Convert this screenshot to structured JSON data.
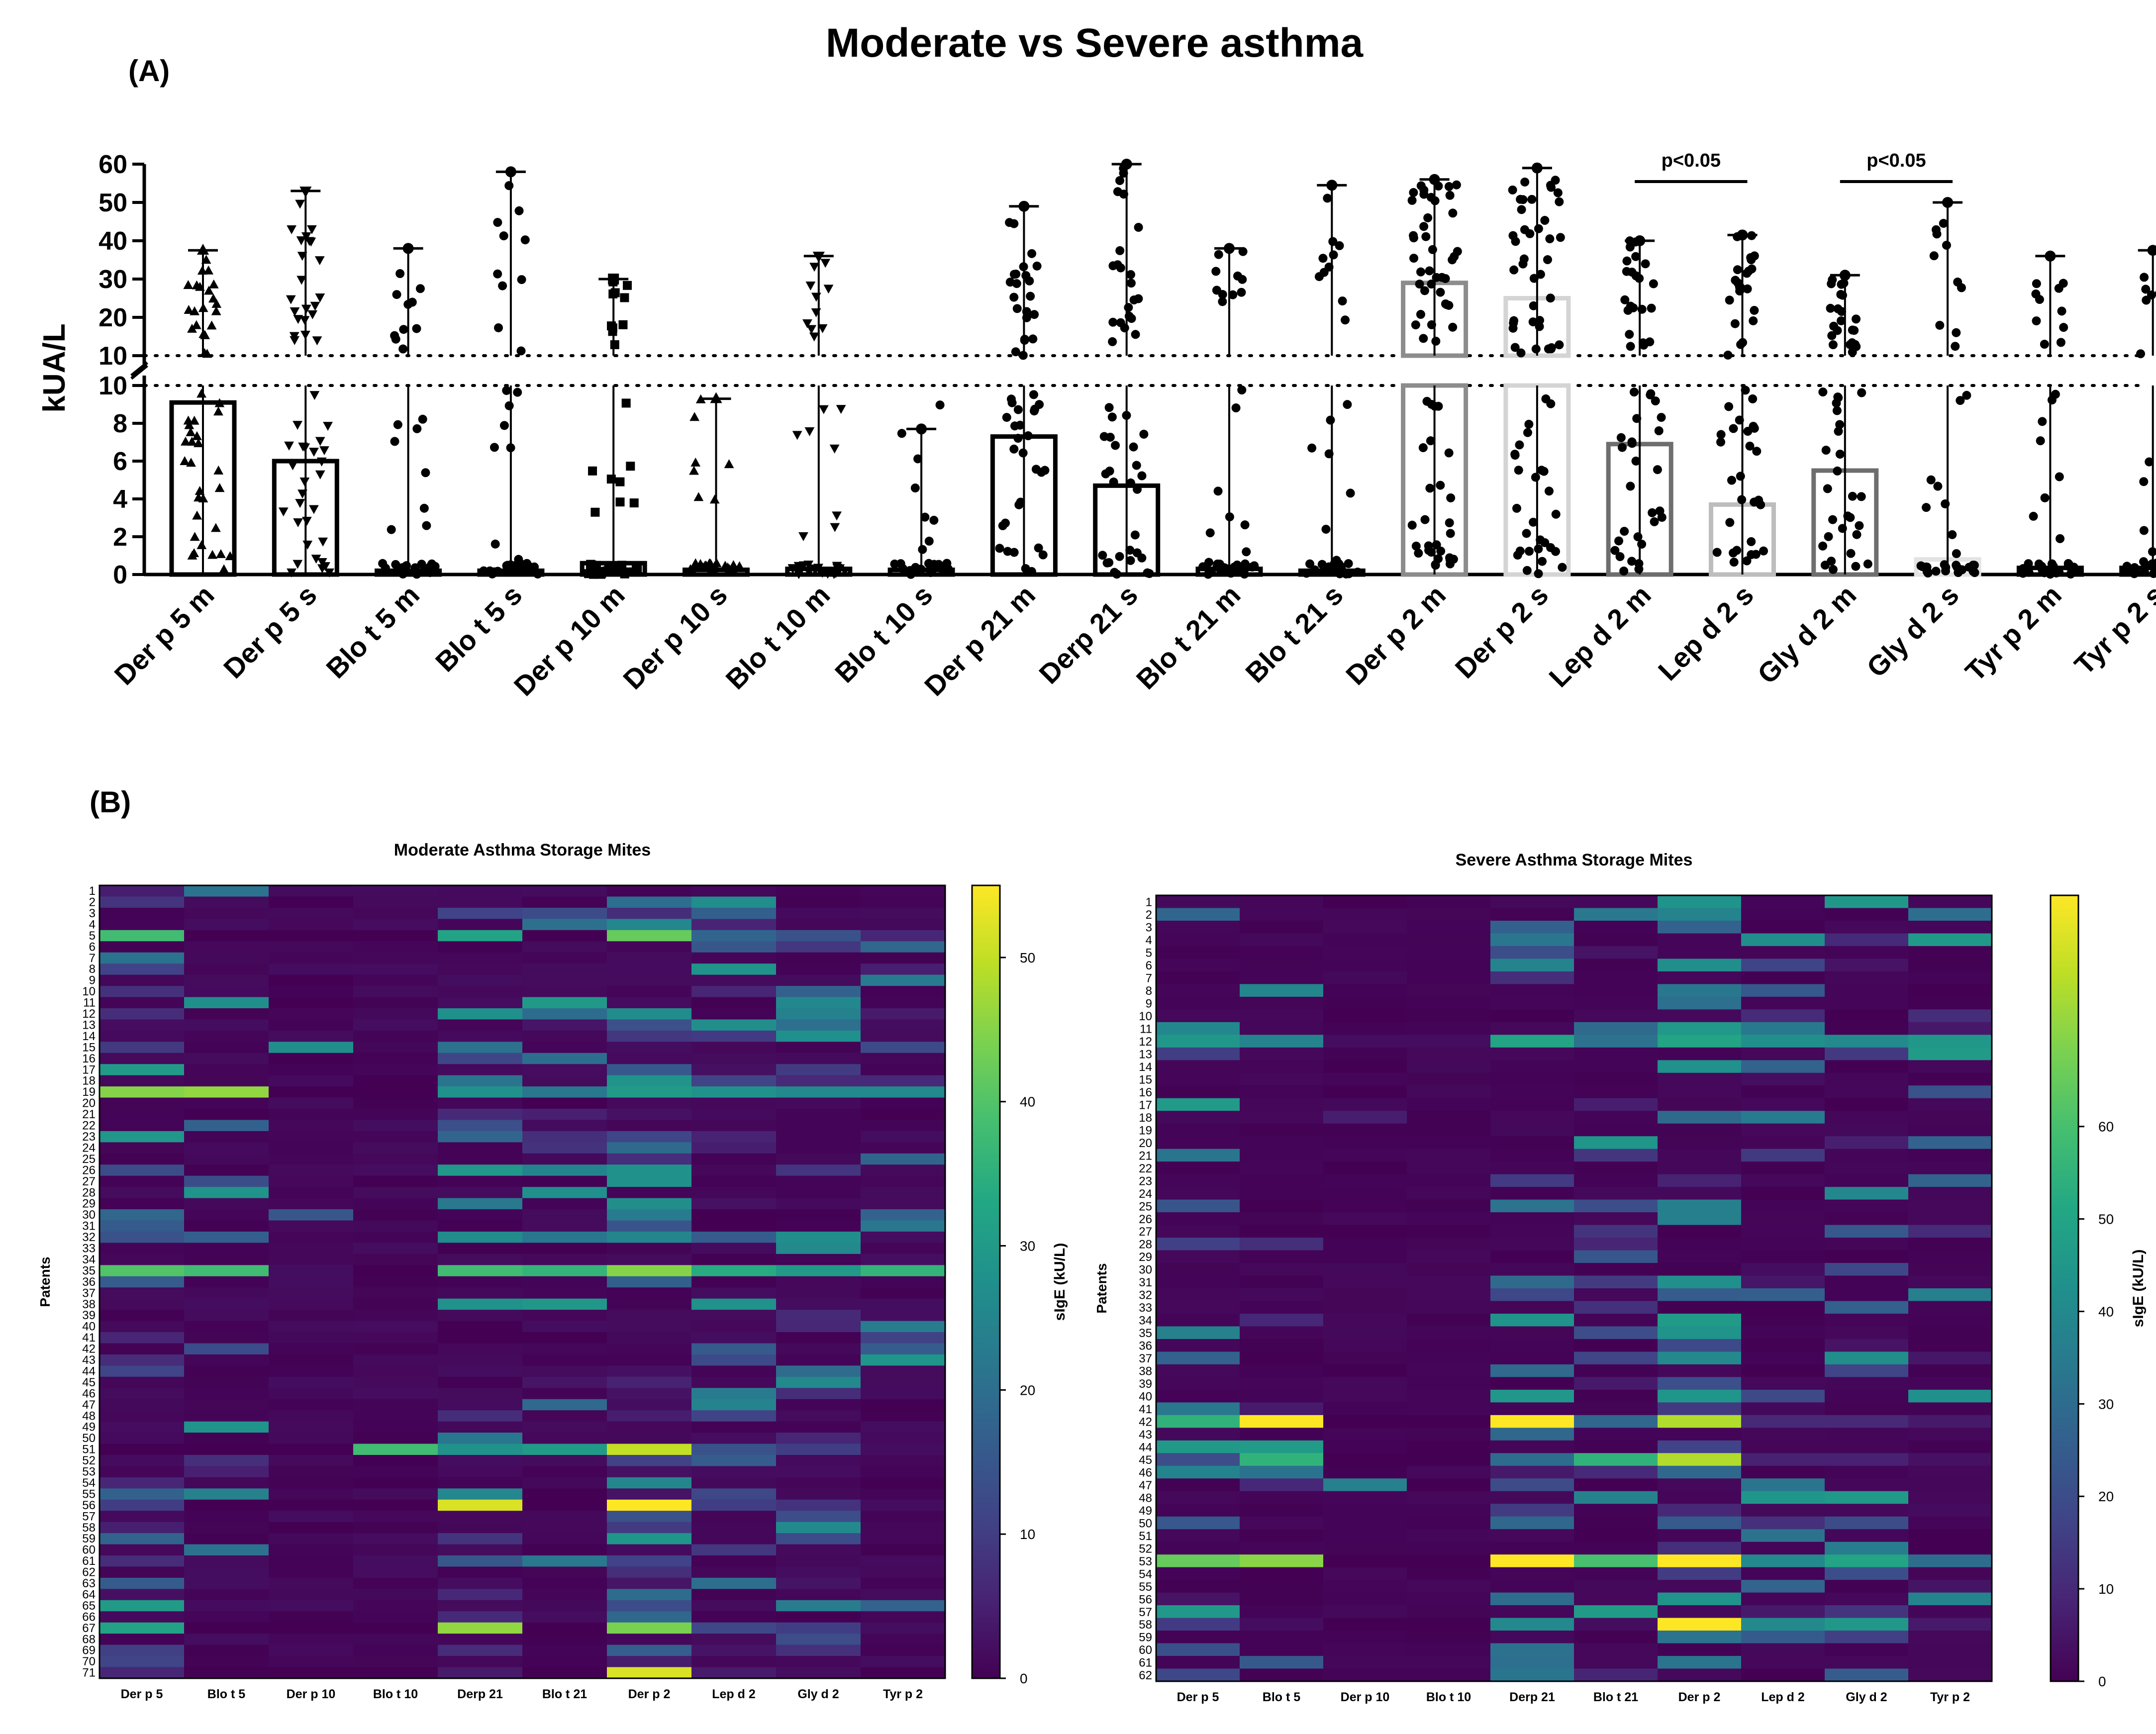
{
  "figure": {
    "title": "Moderate vs Severe asthma",
    "panel_a_label": "(A)",
    "panel_b_label": "(B)"
  },
  "chart_data": [
    {
      "type": "bar",
      "title": "Moderate vs Severe asthma",
      "ylabel": "kUA/L",
      "y_axis": "broken",
      "ylim_lower": [
        0,
        10
      ],
      "ylim_upper": [
        10,
        60
      ],
      "yticks_lower": [
        0,
        2,
        4,
        6,
        8,
        10
      ],
      "yticks_upper": [
        10,
        20,
        30,
        40,
        50,
        60
      ],
      "grid": false,
      "categories": [
        "Der p 5 m",
        "Der p 5 s",
        "Blo t 5 m",
        "Blo t 5 s",
        "Der p 10 m",
        "Der p 10 s",
        "Blo t 10 m",
        "Blo t 10 s",
        "Der p 21 m",
        "Derp 21 s",
        "Blo t 21 m",
        "Blo t 21 s",
        "Der p 2 m",
        "Der p 2 s",
        "Lep d 2 m",
        "Lep d 2 s",
        "Gly d 2 m",
        "Gly d 2 s",
        "Tyr p 2 m",
        "Tyr p 2 s"
      ],
      "medians": [
        9.1,
        6.0,
        0.2,
        0.2,
        0.6,
        0.25,
        0.3,
        0.25,
        7.3,
        4.7,
        0.3,
        0.2,
        29,
        25,
        6.9,
        3.7,
        5.5,
        0.8,
        0.35,
        0.35
      ],
      "max_values": [
        37.5,
        53,
        38,
        58,
        30,
        9.3,
        36,
        7.7,
        49,
        60,
        38,
        54.5,
        56,
        59,
        40,
        41.5,
        31,
        50,
        36,
        37.5
      ],
      "bar_colors": [
        "#000000",
        "#000000",
        "#000000",
        "#000000",
        "#000000",
        "#000000",
        "#000000",
        "#000000",
        "#000000",
        "#000000",
        "#000000",
        "#000000",
        "#8c8c8c",
        "#d4d4d4",
        "#6e6e6e",
        "#bdbdbd",
        "#6e6e6e",
        "#e3e3e3",
        "#000000",
        "#000000"
      ],
      "annotations": [
        {
          "text": "p<0.05",
          "from": "Lep d 2 m",
          "to": "Lep d 2 s"
        },
        {
          "text": "p<0.05",
          "from": "Gly d 2 m",
          "to": "Gly d 2 s"
        }
      ]
    },
    {
      "type": "heatmap",
      "title": "Moderate Asthma Storage Mites",
      "ylabel": "Patents",
      "colorbar_label": "sIgE (kU/L)",
      "colorbar_ticks": [
        0,
        10,
        20,
        30,
        40,
        50
      ],
      "vmax": 55,
      "columns": [
        "Der p 5",
        "Blo t 5",
        "Der p 10",
        "Blo t 10",
        "Derp 21",
        "Blo t 21",
        "Der p 2",
        "Lep d 2",
        "Gly d 2",
        "Tyr p 2"
      ],
      "n_rows": 71,
      "hot_cells": [
        {
          "row": 4,
          "values": [
            38,
            0,
            0,
            0,
            32,
            0,
            42,
            18,
            14,
            6
          ]
        },
        {
          "row": 18,
          "values": [
            45,
            46,
            0,
            0,
            28,
            22,
            30,
            28,
            26,
            26
          ]
        },
        {
          "row": 34,
          "values": [
            40,
            38,
            2,
            0,
            38,
            36,
            45,
            34,
            30,
            36
          ]
        },
        {
          "row": 50,
          "values": [
            0,
            0,
            0,
            38,
            28,
            30,
            50,
            14,
            10,
            2
          ]
        },
        {
          "row": 55,
          "values": [
            10,
            0,
            0,
            0,
            52,
            0,
            55,
            10,
            8,
            2
          ]
        },
        {
          "row": 66,
          "values": [
            32,
            0,
            0,
            0,
            46,
            0,
            44,
            12,
            10,
            2
          ]
        },
        {
          "row": 70,
          "values": [
            6,
            0,
            0,
            0,
            4,
            0,
            52,
            4,
            2,
            0
          ]
        }
      ]
    },
    {
      "type": "heatmap",
      "title": "Severe Asthma Storage Mites",
      "ylabel": "Patents",
      "colorbar_label": "sIgE (kU/L)",
      "colorbar_ticks": [
        0,
        10,
        20,
        30,
        40,
        50,
        60
      ],
      "vmax": 85,
      "columns": [
        "Der p 5",
        "Blo t 5",
        "Der p 10",
        "Blo t 10",
        "Derp 21",
        "Blo t 21",
        "Der p 2",
        "Lep d 2",
        "Gly d 2",
        "Tyr p 2"
      ],
      "n_rows": 62,
      "hot_cells": [
        {
          "row": 11,
          "values": [
            45,
            38,
            3,
            3,
            50,
            32,
            50,
            42,
            40,
            45
          ]
        },
        {
          "row": 41,
          "values": [
            55,
            85,
            0,
            0,
            85,
            28,
            75,
            10,
            10,
            6
          ]
        },
        {
          "row": 44,
          "values": [
            20,
            55,
            0,
            0,
            30,
            55,
            75,
            8,
            8,
            4
          ]
        },
        {
          "row": 52,
          "values": [
            65,
            70,
            0,
            0,
            85,
            60,
            85,
            40,
            50,
            30
          ]
        },
        {
          "row": 57,
          "values": [
            15,
            3,
            0,
            0,
            40,
            3,
            85,
            40,
            45,
            6
          ]
        }
      ]
    }
  ]
}
